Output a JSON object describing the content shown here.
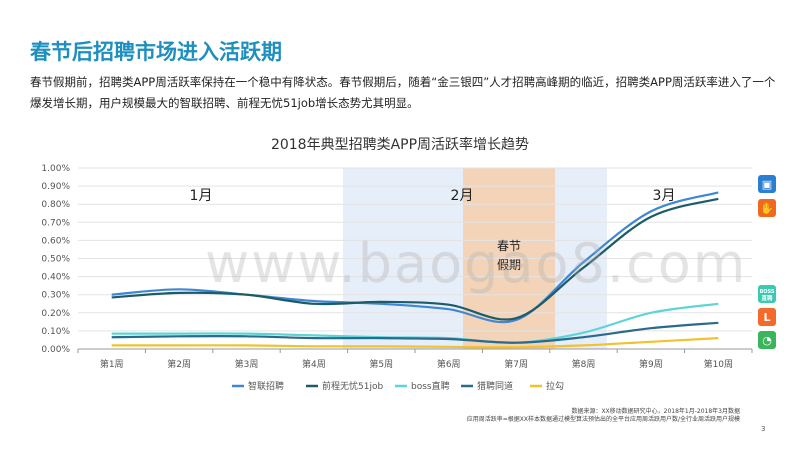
{
  "title": "春节后招聘市场进入活跃期",
  "intro": "春节假期前，招聘类APP周活跃率保持在一个稳中有降状态。春节假期后，随着“金三银四”人才招聘高峰期的临近，招聘类APP周活跃率进入了一个爆发增长期，用户规模最大的智联招聘、前程无忧51job增长态势尤其明显。",
  "chart_data": {
    "type": "line",
    "title": "2018年典型招聘类APP周活跃率增长趋势",
    "categories": [
      "第1周",
      "第2周",
      "第3周",
      "第4周",
      "第5周",
      "第6周",
      "第7周",
      "第8周",
      "第9周",
      "第10周"
    ],
    "ylim": [
      0,
      1.0
    ],
    "y_ticks": [
      "0.00%",
      "0.10%",
      "0.20%",
      "0.30%",
      "0.40%",
      "0.50%",
      "0.60%",
      "0.70%",
      "0.80%",
      "0.90%",
      "1.00%"
    ],
    "grid": true,
    "legend": "bottom",
    "series": [
      {
        "name": "智联招聘",
        "color": "#3f86d4",
        "values": [
          0.3,
          0.33,
          0.3,
          0.265,
          0.25,
          0.22,
          0.16,
          0.48,
          0.76,
          0.865
        ]
      },
      {
        "name": "前程无忧51job",
        "color": "#1d5c66",
        "values": [
          0.285,
          0.31,
          0.3,
          0.25,
          0.26,
          0.245,
          0.17,
          0.45,
          0.73,
          0.83
        ]
      },
      {
        "name": "boss直聘",
        "color": "#5ed4d6",
        "values": [
          0.085,
          0.085,
          0.085,
          0.075,
          0.065,
          0.06,
          0.035,
          0.09,
          0.2,
          0.25
        ]
      },
      {
        "name": "猎聘同道",
        "color": "#2a6a8a",
        "values": [
          0.065,
          0.07,
          0.07,
          0.06,
          0.06,
          0.055,
          0.035,
          0.065,
          0.115,
          0.145
        ]
      },
      {
        "name": "拉勾",
        "color": "#f2c12e",
        "values": [
          0.02,
          0.02,
          0.02,
          0.015,
          0.015,
          0.012,
          0.01,
          0.02,
          0.04,
          0.06
        ]
      }
    ],
    "annotations": {
      "months": [
        "1月",
        "2月",
        "3月"
      ],
      "festival_label": [
        "春节",
        "假期"
      ]
    }
  },
  "watermark": "www.baogao8.com",
  "footnote": {
    "line1": "数据来源：XX移动数据研究中心，2018年1月-2018年3月数据",
    "line2": "应用周活跃率=根据XX样本数据通过模型算法预估出的全平台应用周活跃用户数/全行业周活跃用户规模"
  },
  "page_number": "3",
  "icons": [
    "zhilian-app-icon",
    "51job-app-icon",
    "boss-app-icon",
    "liepin-app-icon",
    "lagou-app-icon"
  ],
  "icon_texts": {
    "boss": "BOSS\n直聘"
  }
}
